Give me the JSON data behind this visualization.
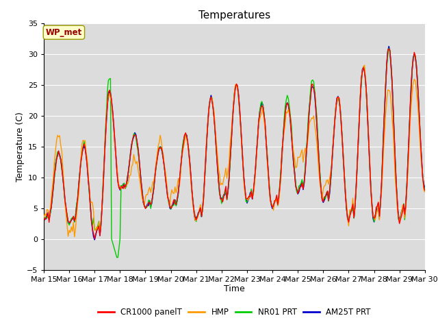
{
  "title": "Temperatures",
  "xlabel": "Time",
  "ylabel": "Temperature (C)",
  "ylim": [
    -5,
    35
  ],
  "xlim": [
    0,
    360
  ],
  "background_color": "#dcdcdc",
  "grid_color": "white",
  "annotation_text": "WP_met",
  "annotation_bg": "#ffffcc",
  "annotation_border": "#999900",
  "annotation_text_color": "#990000",
  "series": {
    "CR1000 panelT": {
      "color": "#ff0000",
      "lw": 1.0
    },
    "HMP": {
      "color": "#ff9900",
      "lw": 1.0
    },
    "NR01 PRT": {
      "color": "#00cc00",
      "lw": 1.0
    },
    "AM25T PRT": {
      "color": "#0000cc",
      "lw": 1.2
    }
  },
  "xtick_labels": [
    "Mar 15",
    "Mar 16",
    "Mar 17",
    "Mar 18",
    "Mar 19",
    "Mar 20",
    "Mar 21",
    "Mar 22",
    "Mar 23",
    "Mar 24",
    "Mar 25",
    "Mar 26",
    "Mar 27",
    "Mar 28",
    "Mar 29",
    "Mar 30"
  ],
  "xtick_positions": [
    0,
    24,
    48,
    72,
    96,
    120,
    144,
    168,
    192,
    216,
    240,
    264,
    288,
    312,
    336,
    360
  ],
  "day_peaks": [
    14,
    15,
    24,
    17,
    15,
    17,
    23,
    25,
    22,
    22,
    25,
    23,
    28,
    31,
    30,
    9
  ],
  "day_valleys": [
    3,
    2.5,
    0,
    8,
    5,
    5,
    3,
    6,
    6,
    5,
    7.5,
    6,
    3,
    3,
    3,
    8
  ],
  "hmp_day_peaks": [
    17,
    16,
    23.5,
    13,
    16,
    16.5,
    23,
    25,
    21,
    20.5,
    20,
    23,
    28,
    24.5,
    26,
    9
  ],
  "hmp_day_valleys": [
    3.5,
    0.5,
    0.5,
    8,
    5,
    5,
    3,
    9,
    6,
    5,
    11,
    6,
    3,
    3,
    3,
    8
  ],
  "nr01_peaks_adj": [
    0,
    0.5,
    2,
    0,
    0,
    0,
    0,
    0,
    0,
    1,
    1,
    0,
    0,
    0,
    0,
    0
  ]
}
